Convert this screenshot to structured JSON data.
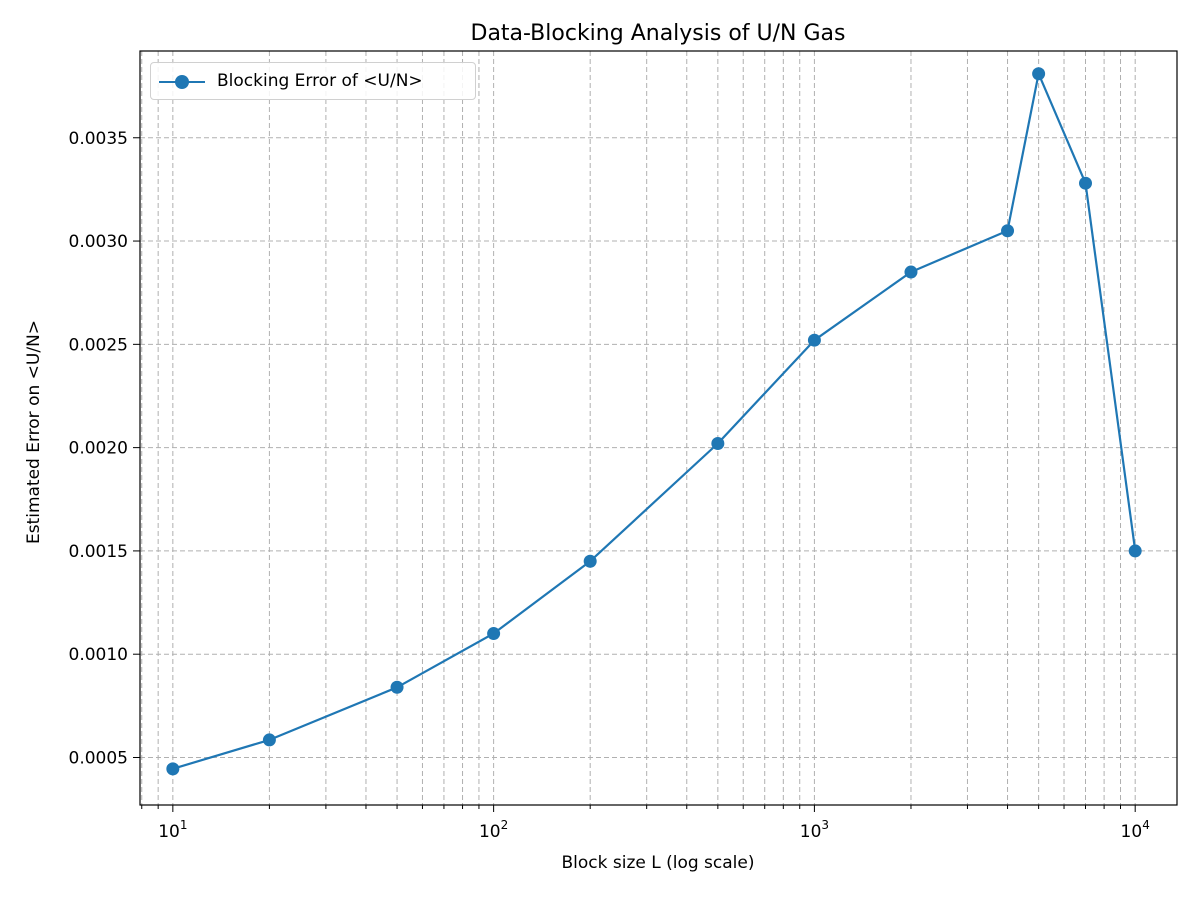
{
  "chart_data": {
    "type": "line",
    "title": "Data-Blocking Analysis of U/N Gas",
    "xlabel": "Block size L (log scale)",
    "ylabel": "Estimated Error on <U/N>",
    "xscale": "log",
    "xlim": [
      7.9,
      13500
    ],
    "ylim": [
      0.00027,
      0.00392
    ],
    "grid": "both major and minor, dashed",
    "legend_placement": "top-left",
    "x_ticks": [
      {
        "base": "10",
        "exp": "1",
        "value": 10
      },
      {
        "base": "10",
        "exp": "2",
        "value": 100
      },
      {
        "base": "10",
        "exp": "3",
        "value": 1000
      },
      {
        "base": "10",
        "exp": "4",
        "value": 10000
      }
    ],
    "y_ticks": [
      {
        "label": "0.0005",
        "value": 0.0005
      },
      {
        "label": "0.0010",
        "value": 0.001
      },
      {
        "label": "0.0015",
        "value": 0.0015
      },
      {
        "label": "0.0020",
        "value": 0.002
      },
      {
        "label": "0.0025",
        "value": 0.0025
      },
      {
        "label": "0.0030",
        "value": 0.003
      },
      {
        "label": "0.0035",
        "value": 0.0035
      }
    ],
    "series": [
      {
        "name": "Blocking Error of <U/N>",
        "color": "#1f77b4",
        "marker": "circle",
        "x": [
          10,
          20,
          50,
          100,
          200,
          500,
          1000,
          2000,
          4000,
          5000,
          7000,
          10000
        ],
        "y": [
          0.000445,
          0.000585,
          0.00084,
          0.0011,
          0.00145,
          0.00202,
          0.00252,
          0.00285,
          0.00305,
          0.00381,
          0.00328,
          0.0015
        ]
      }
    ]
  }
}
